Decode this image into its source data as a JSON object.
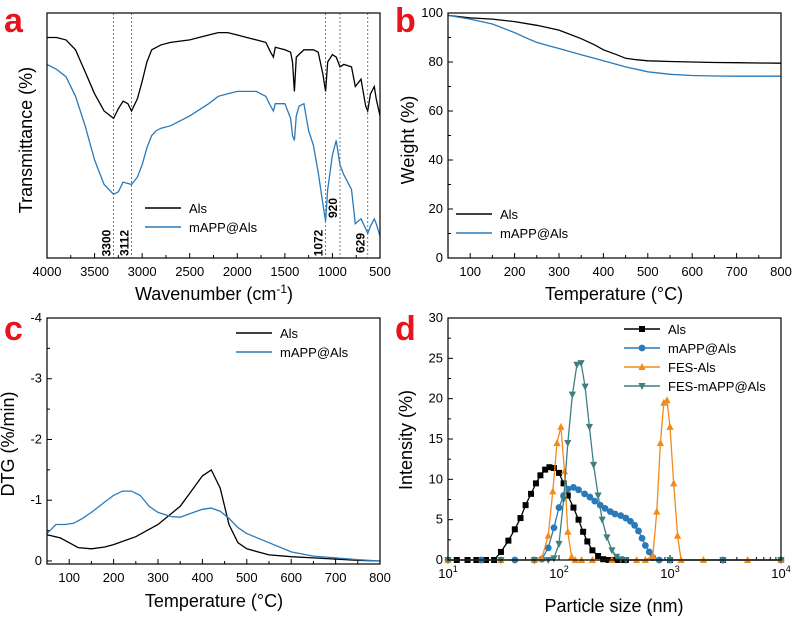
{
  "colors": {
    "black": "#000000",
    "blue": "#2a7ab9",
    "orange": "#f28a1c",
    "teal": "#3f7f82",
    "panel": "#e8141c"
  },
  "chart_data": [
    {
      "id": "a",
      "panel_label": "a",
      "type": "line",
      "xlabel": "Wavenumber (cm-1)",
      "xlabel_main": "Wavenumber (cm",
      "xlabel_sup": "-1",
      "xlabel_end": ")",
      "ylabel": "Transmittance (%)",
      "xlim": [
        4000,
        500
      ],
      "ylim": [
        0,
        100
      ],
      "xticks": [
        4000,
        3500,
        3000,
        2500,
        2000,
        1500,
        1000,
        500
      ],
      "yticks": [],
      "annotations": [
        "3300",
        "3112",
        "1072",
        "920",
        "629"
      ],
      "annotation_x": [
        3300,
        3112,
        1072,
        920,
        629
      ],
      "legend": [
        "Als",
        "mAPP@Als"
      ],
      "series": [
        {
          "name": "Als",
          "color": "#000000",
          "x": [
            4000,
            3900,
            3800,
            3700,
            3600,
            3500,
            3400,
            3300,
            3250,
            3200,
            3150,
            3112,
            3050,
            3000,
            2950,
            2900,
            2850,
            2800,
            2700,
            2500,
            2300,
            2200,
            2100,
            2000,
            1900,
            1800,
            1700,
            1650,
            1620,
            1600,
            1500,
            1440,
            1420,
            1400,
            1380,
            1300,
            1200,
            1150,
            1100,
            1072,
            1050,
            1000,
            960,
            920,
            880,
            800,
            760,
            700,
            650,
            629,
            600,
            560,
            540,
            500
          ],
          "y": [
            90,
            90,
            89,
            85,
            76,
            67,
            60,
            57,
            61,
            64,
            63,
            60,
            65,
            72,
            80,
            85,
            86,
            87,
            88,
            89,
            91,
            92,
            92,
            91,
            90,
            89,
            88,
            84,
            82,
            86,
            85,
            84,
            80,
            68,
            82,
            85,
            85,
            84,
            75,
            68,
            80,
            83,
            82,
            78,
            79,
            78,
            70,
            73,
            62,
            60,
            67,
            70,
            65,
            58
          ]
        },
        {
          "name": "mAPP@Als",
          "color": "#2a7ab9",
          "x": [
            4000,
            3900,
            3800,
            3700,
            3600,
            3500,
            3400,
            3300,
            3250,
            3200,
            3112,
            3050,
            3000,
            2950,
            2900,
            2850,
            2800,
            2700,
            2500,
            2300,
            2200,
            2100,
            2000,
            1900,
            1800,
            1700,
            1650,
            1620,
            1600,
            1500,
            1440,
            1420,
            1400,
            1380,
            1350,
            1300,
            1250,
            1200,
            1150,
            1100,
            1072,
            1050,
            1000,
            960,
            920,
            880,
            800,
            760,
            700,
            650,
            629,
            600,
            560,
            540,
            500
          ],
          "y": [
            79,
            77,
            74,
            66,
            54,
            40,
            30,
            26,
            27,
            31,
            30,
            33,
            38,
            45,
            50,
            52,
            53,
            54,
            58,
            63,
            66,
            67,
            68,
            68,
            68,
            66,
            62,
            60,
            63,
            63,
            57,
            50,
            48,
            58,
            62,
            63,
            52,
            46,
            35,
            22,
            15,
            28,
            42,
            48,
            38,
            34,
            28,
            14,
            16,
            12,
            10,
            13,
            16,
            14,
            9
          ]
        }
      ]
    },
    {
      "id": "b",
      "panel_label": "b",
      "type": "line",
      "xlabel": "Temperature (°C)",
      "ylabel": "Weight (%)",
      "xlim": [
        50,
        800
      ],
      "ylim": [
        0,
        100
      ],
      "xticks": [
        100,
        200,
        300,
        400,
        500,
        600,
        700,
        800
      ],
      "yticks": [
        0,
        20,
        40,
        60,
        80,
        100
      ],
      "legend": [
        "Als",
        "mAPP@Als"
      ],
      "series": [
        {
          "name": "Als",
          "color": "#000000",
          "x": [
            50,
            100,
            150,
            200,
            250,
            300,
            350,
            380,
            400,
            430,
            450,
            470,
            500,
            550,
            600,
            650,
            700,
            750,
            800
          ],
          "y": [
            99,
            98,
            97.5,
            96.5,
            95,
            93,
            89.5,
            87,
            85,
            83,
            81.5,
            81,
            80.5,
            80.2,
            80,
            79.8,
            79.7,
            79.6,
            79.5
          ]
        },
        {
          "name": "mAPP@Als",
          "color": "#2a7ab9",
          "x": [
            50,
            100,
            150,
            200,
            230,
            250,
            280,
            300,
            350,
            400,
            450,
            500,
            550,
            600,
            650,
            700,
            750,
            800
          ],
          "y": [
            99,
            97.5,
            95.5,
            92,
            89.5,
            88,
            86.5,
            85.5,
            83,
            80.5,
            78,
            76,
            75,
            74.5,
            74.3,
            74.2,
            74.2,
            74.2
          ]
        }
      ]
    },
    {
      "id": "c",
      "panel_label": "c",
      "type": "line",
      "xlabel": "Temperature (°C)",
      "ylabel": "DTG (%/min)",
      "xlim": [
        50,
        800
      ],
      "ylim": [
        0.05,
        -4
      ],
      "xticks": [
        100,
        200,
        300,
        400,
        500,
        600,
        700,
        800
      ],
      "yticks": [
        0,
        -1,
        -2,
        -3,
        -4
      ],
      "legend": [
        "Als",
        "mAPP@Als"
      ],
      "series": [
        {
          "name": "Als",
          "color": "#000000",
          "x": [
            50,
            80,
            100,
            120,
            150,
            180,
            200,
            250,
            300,
            350,
            380,
            400,
            420,
            440,
            460,
            480,
            500,
            550,
            600,
            650,
            700,
            750,
            800
          ],
          "y": [
            -0.43,
            -0.38,
            -0.3,
            -0.22,
            -0.2,
            -0.23,
            -0.27,
            -0.4,
            -0.6,
            -0.9,
            -1.2,
            -1.4,
            -1.5,
            -1.2,
            -0.6,
            -0.3,
            -0.2,
            -0.1,
            -0.07,
            -0.05,
            -0.03,
            -0.01,
            0.0
          ]
        },
        {
          "name": "mAPP@Als",
          "color": "#2a7ab9",
          "x": [
            50,
            70,
            90,
            110,
            130,
            150,
            180,
            200,
            220,
            240,
            260,
            280,
            300,
            330,
            350,
            380,
            400,
            420,
            440,
            460,
            480,
            500,
            550,
            600,
            650,
            700,
            750,
            800
          ],
          "y": [
            -0.45,
            -0.6,
            -0.6,
            -0.62,
            -0.7,
            -0.8,
            -0.97,
            -1.08,
            -1.15,
            -1.15,
            -1.08,
            -0.9,
            -0.8,
            -0.73,
            -0.72,
            -0.8,
            -0.85,
            -0.87,
            -0.82,
            -0.7,
            -0.55,
            -0.45,
            -0.3,
            -0.15,
            -0.08,
            -0.05,
            -0.02,
            0.0
          ]
        }
      ]
    },
    {
      "id": "d",
      "panel_label": "d",
      "type": "line",
      "xscale": "log",
      "xlabel": "Particle size (nm)",
      "ylabel": "Intensity (%)",
      "xlim": [
        10,
        10000
      ],
      "ylim": [
        0,
        30
      ],
      "xticks": [
        10,
        100,
        1000,
        10000
      ],
      "xtick_bases": [
        "10",
        "10",
        "10",
        "10"
      ],
      "xtick_exps": [
        "1",
        "2",
        "3",
        "4"
      ],
      "yticks": [
        0,
        5,
        10,
        15,
        20,
        25,
        30
      ],
      "legend": [
        "Als",
        "mAPP@Als",
        "FES-Als",
        "FES-mAPP@Als"
      ],
      "series": [
        {
          "name": "Als",
          "color": "#000000",
          "marker": "square",
          "x": [
            10,
            12,
            15,
            18,
            22,
            26,
            30,
            35,
            40,
            45,
            50,
            56,
            62,
            68,
            75,
            82,
            90,
            100,
            110,
            120,
            135,
            150,
            165,
            180,
            200,
            225,
            250,
            280,
            320,
            360,
            400,
            1000,
            3000,
            10000
          ],
          "y": [
            0,
            0,
            0,
            0,
            0,
            0,
            1,
            2.4,
            3.8,
            5.2,
            6.8,
            8.2,
            9.5,
            10.5,
            11.2,
            11.5,
            11.4,
            10.8,
            9.5,
            8,
            6.5,
            5,
            3.5,
            2.3,
            1.2,
            0.5,
            0.1,
            0,
            0,
            0,
            0,
            0,
            0,
            0
          ]
        },
        {
          "name": "mAPP@Als",
          "color": "#2a7ab9",
          "marker": "circle",
          "x": [
            10,
            20,
            40,
            60,
            70,
            80,
            90,
            100,
            110,
            120,
            135,
            150,
            170,
            190,
            210,
            235,
            260,
            290,
            320,
            360,
            400,
            440,
            480,
            520,
            560,
            600,
            650,
            700,
            800,
            1000,
            3000,
            10000
          ],
          "y": [
            0,
            0,
            0,
            0,
            0.1,
            1.5,
            4,
            6.5,
            8,
            8.8,
            9,
            8.7,
            8.2,
            7.8,
            7.3,
            6.8,
            6.4,
            6,
            5.7,
            5.5,
            5.2,
            4.8,
            4.3,
            3.6,
            2.7,
            1.8,
            1,
            0.3,
            0,
            0,
            0,
            0
          ]
        },
        {
          "name": "FES-Als",
          "color": "#f28a1c",
          "marker": "triangle-up",
          "x": [
            10,
            30,
            60,
            70,
            80,
            88,
            96,
            104,
            112,
            120,
            130,
            140,
            160,
            200,
            300,
            500,
            600,
            700,
            760,
            820,
            880,
            940,
            1000,
            1080,
            1170,
            1260,
            2000,
            5000,
            10000
          ],
          "y": [
            0,
            0,
            0,
            0.2,
            3,
            8.5,
            14.5,
            16.5,
            11,
            3.5,
            0.4,
            0,
            0,
            0,
            0,
            0,
            0,
            0.5,
            6,
            14.5,
            19.5,
            19.8,
            16.5,
            9.5,
            3,
            0,
            0,
            0,
            0
          ]
        },
        {
          "name": "FES-mAPP@Als",
          "color": "#3f7f82",
          "marker": "triangle-down",
          "x": [
            10,
            30,
            60,
            80,
            90,
            100,
            110,
            120,
            132,
            145,
            158,
            172,
            188,
            205,
            225,
            245,
            270,
            300,
            330,
            360,
            400,
            1000,
            3000,
            10000
          ],
          "y": [
            0,
            0,
            0,
            0,
            0.2,
            2,
            7.5,
            14.5,
            20.5,
            24.2,
            24.4,
            21.5,
            16.5,
            11.8,
            8,
            5,
            2.8,
            1.2,
            0.4,
            0.1,
            0,
            0,
            0,
            0
          ]
        }
      ]
    }
  ]
}
